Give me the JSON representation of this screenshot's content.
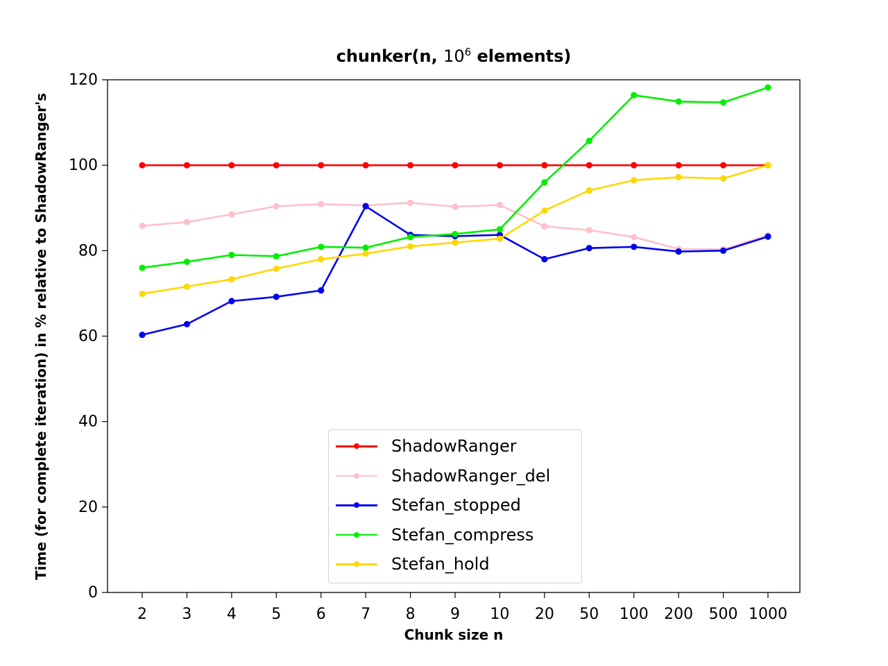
{
  "chart_data": {
    "type": "line",
    "title_prefix": "chunker(n, ",
    "title_base": "10",
    "title_exp": "6",
    "title_suffix": " elements)",
    "xlabel": "Chunk size n",
    "ylabel": "Time (for complete iteration) in % relative to ShadowRanger's",
    "categories": [
      "2",
      "3",
      "4",
      "5",
      "6",
      "7",
      "8",
      "9",
      "10",
      "20",
      "50",
      "100",
      "200",
      "500",
      "1000"
    ],
    "ylim": [
      0,
      120
    ],
    "yticks": [
      0,
      20,
      40,
      60,
      80,
      100,
      120
    ],
    "legend_position": "lower-center",
    "grid": false,
    "series": [
      {
        "name": "ShadowRanger",
        "color": "#ff0000",
        "values": [
          100,
          100,
          100,
          100,
          100,
          100,
          100,
          100,
          100,
          100,
          100,
          100,
          100,
          100,
          100
        ]
      },
      {
        "name": "ShadowRanger_del",
        "color": "#ffc0cb",
        "values": [
          85.8,
          86.7,
          88.5,
          90.4,
          90.9,
          90.6,
          91.2,
          90.3,
          90.7,
          85.7,
          84.8,
          83.2,
          80.4,
          80.3,
          83.6
        ]
      },
      {
        "name": "Stefan_stopped",
        "color": "#0000ee",
        "values": [
          60.3,
          62.8,
          68.2,
          69.2,
          70.7,
          90.4,
          83.7,
          83.4,
          83.7,
          78.0,
          80.6,
          80.9,
          79.8,
          80.0,
          83.3
        ]
      },
      {
        "name": "Stefan_compress",
        "color": "#00ee00",
        "values": [
          76.0,
          77.4,
          79.0,
          78.7,
          80.9,
          80.7,
          83.2,
          83.9,
          85.0,
          96.0,
          105.7,
          116.4,
          114.9,
          114.7,
          118.2
        ]
      },
      {
        "name": "Stefan_hold",
        "color": "#ffd700",
        "values": [
          69.9,
          71.6,
          73.3,
          75.8,
          78.0,
          79.3,
          81.0,
          81.9,
          82.8,
          89.4,
          94.1,
          96.5,
          97.2,
          96.9,
          100.0
        ]
      }
    ]
  }
}
